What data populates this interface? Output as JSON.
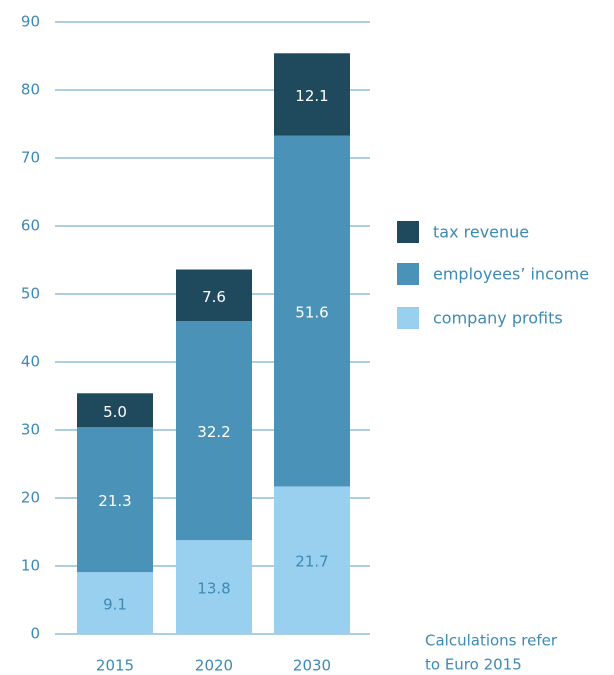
{
  "chart_data": {
    "type": "stacked_bar",
    "categories": [
      "2015",
      "2020",
      "2030"
    ],
    "series": [
      {
        "name": "company profits",
        "color": "#99cfef",
        "label_color": "#3d8ab5",
        "values": [
          9.1,
          13.8,
          21.7
        ]
      },
      {
        "name": "employees’ income",
        "color": "#4a92b8",
        "label_color": "#ffffff",
        "values": [
          21.3,
          32.2,
          51.6
        ]
      },
      {
        "name": "tax revenue",
        "color": "#1f4a5e",
        "label_color": "#ffffff",
        "values": [
          5.0,
          7.6,
          12.1
        ],
        "value_labels": [
          "5.0",
          "7.6",
          "12.1"
        ]
      }
    ],
    "ylim": [
      0,
      90
    ],
    "yticks": [
      0,
      10,
      20,
      30,
      40,
      50,
      60,
      70,
      80,
      90
    ],
    "grid": true,
    "annotation": [
      "Calculations refer",
      "to Euro 2015"
    ]
  }
}
